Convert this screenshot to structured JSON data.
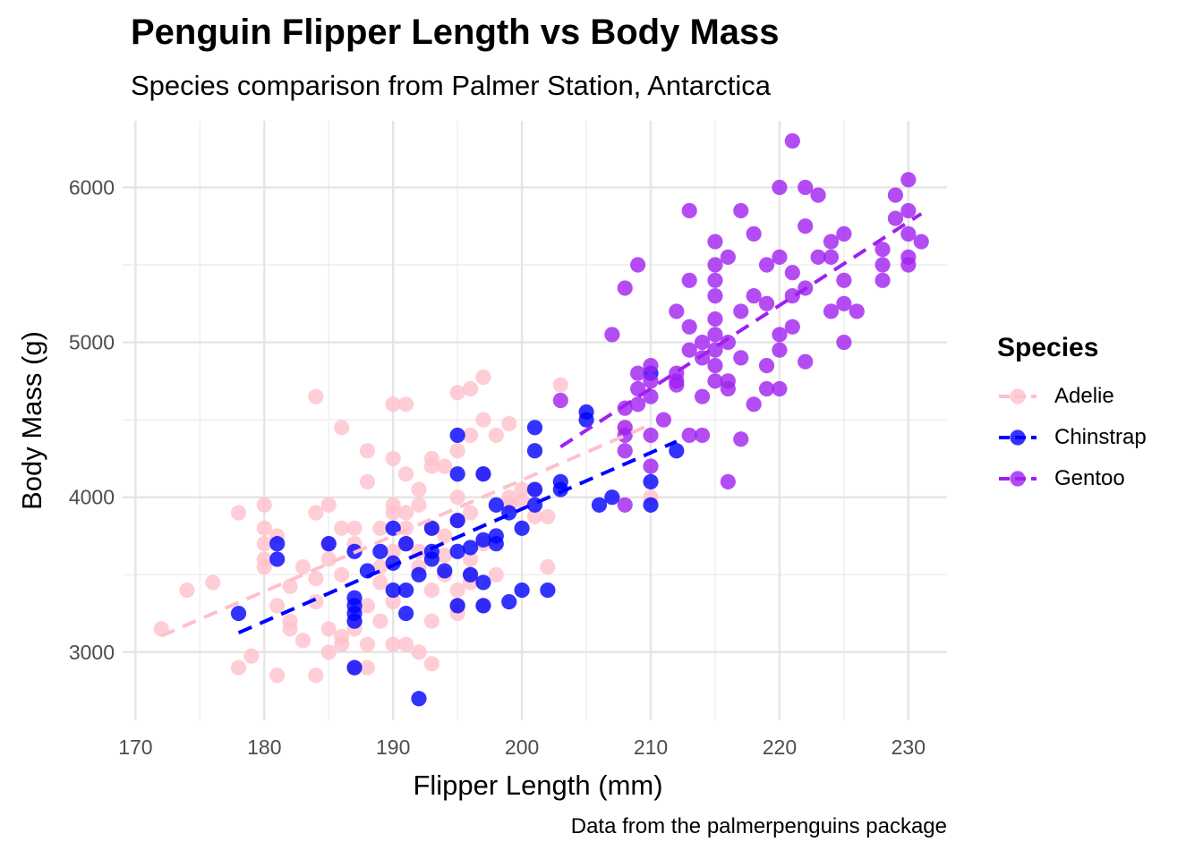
{
  "chart_data": {
    "type": "scatter",
    "title": "Penguin Flipper Length vs Body Mass",
    "subtitle": "Species comparison from Palmer Station, Antarctica",
    "caption": "Data from the palmerpenguins package",
    "xlabel": "Flipper Length (mm)",
    "ylabel": "Body Mass (g)",
    "xlim": [
      169,
      233
    ],
    "ylim": [
      2560,
      6430
    ],
    "x_ticks": [
      170,
      180,
      190,
      200,
      210,
      220,
      230
    ],
    "y_ticks": [
      3000,
      4000,
      5000,
      6000
    ],
    "grid": true,
    "legend": {
      "title": "Species",
      "position": "right"
    },
    "series": [
      {
        "name": "Adelie",
        "color": "#FFC0CB",
        "trend": {
          "x": [
            172,
            210
          ],
          "y": [
            3105,
            4470
          ]
        },
        "points": [
          [
            172,
            3150
          ],
          [
            174,
            3400
          ],
          [
            176,
            3450
          ],
          [
            178,
            3900
          ],
          [
            178,
            2900
          ],
          [
            179,
            2975
          ],
          [
            180,
            3950
          ],
          [
            180,
            3800
          ],
          [
            180,
            3700
          ],
          [
            180,
            3550
          ],
          [
            180,
            3600
          ],
          [
            181,
            2850
          ],
          [
            181,
            3300
          ],
          [
            181,
            3750
          ],
          [
            182,
            3150
          ],
          [
            182,
            3200
          ],
          [
            182,
            3425
          ],
          [
            183,
            3075
          ],
          [
            183,
            3550
          ],
          [
            184,
            4650
          ],
          [
            184,
            3900
          ],
          [
            184,
            3325
          ],
          [
            184,
            3475
          ],
          [
            184,
            2850
          ],
          [
            185,
            3950
          ],
          [
            185,
            3150
          ],
          [
            185,
            3700
          ],
          [
            185,
            3000
          ],
          [
            185,
            3600
          ],
          [
            186,
            4450
          ],
          [
            186,
            3800
          ],
          [
            186,
            3100
          ],
          [
            186,
            3500
          ],
          [
            186,
            3050
          ],
          [
            187,
            3800
          ],
          [
            187,
            3200
          ],
          [
            187,
            3150
          ],
          [
            187,
            2900
          ],
          [
            187,
            3700
          ],
          [
            188,
            4300
          ],
          [
            188,
            4100
          ],
          [
            188,
            3050
          ],
          [
            188,
            2900
          ],
          [
            188,
            3300
          ],
          [
            189,
            3200
          ],
          [
            189,
            3450
          ],
          [
            189,
            3800
          ],
          [
            189,
            3550
          ],
          [
            190,
            4600
          ],
          [
            190,
            3950
          ],
          [
            190,
            3900
          ],
          [
            190,
            4250
          ],
          [
            190,
            3050
          ],
          [
            190,
            3325
          ],
          [
            190,
            3650
          ],
          [
            191,
            4600
          ],
          [
            191,
            3800
          ],
          [
            191,
            3050
          ],
          [
            191,
            3700
          ],
          [
            191,
            3900
          ],
          [
            191,
            4150
          ],
          [
            192,
            4050
          ],
          [
            192,
            3950
          ],
          [
            192,
            3000
          ],
          [
            192,
            3650
          ],
          [
            192,
            3550
          ],
          [
            193,
            4250
          ],
          [
            193,
            4200
          ],
          [
            193,
            3400
          ],
          [
            193,
            3200
          ],
          [
            193,
            2925
          ],
          [
            193,
            3800
          ],
          [
            194,
            4200
          ],
          [
            194,
            3500
          ],
          [
            194,
            3625
          ],
          [
            194,
            3750
          ],
          [
            195,
            4675
          ],
          [
            195,
            4000
          ],
          [
            195,
            3250
          ],
          [
            195,
            3300
          ],
          [
            195,
            3400
          ],
          [
            195,
            3850
          ],
          [
            195,
            4300
          ],
          [
            196,
            4700
          ],
          [
            196,
            4400
          ],
          [
            196,
            3500
          ],
          [
            196,
            3900
          ],
          [
            196,
            3450
          ],
          [
            196,
            3600
          ],
          [
            197,
            4775
          ],
          [
            197,
            4500
          ],
          [
            197,
            4150
          ],
          [
            197,
            3300
          ],
          [
            197,
            3700
          ],
          [
            198,
            4400
          ],
          [
            198,
            3500
          ],
          [
            199,
            4475
          ],
          [
            199,
            3950
          ],
          [
            199,
            4000
          ],
          [
            200,
            4050
          ],
          [
            200,
            3975
          ],
          [
            201,
            3875
          ],
          [
            201,
            4050
          ],
          [
            202,
            3550
          ],
          [
            202,
            3875
          ],
          [
            203,
            4725
          ],
          [
            208,
            4450
          ],
          [
            210,
            4000
          ]
        ]
      },
      {
        "name": "Chinstrap",
        "color": "#0000FF",
        "trend": {
          "x": [
            178,
            212
          ],
          "y": [
            3125,
            4360
          ]
        },
        "points": [
          [
            178,
            3250
          ],
          [
            181,
            3700
          ],
          [
            181,
            3600
          ],
          [
            185,
            3700
          ],
          [
            187,
            3650
          ],
          [
            187,
            3350
          ],
          [
            187,
            3250
          ],
          [
            187,
            2900
          ],
          [
            187,
            3300
          ],
          [
            187,
            3200
          ],
          [
            188,
            3525
          ],
          [
            189,
            3650
          ],
          [
            190,
            3400
          ],
          [
            190,
            3575
          ],
          [
            190,
            3800
          ],
          [
            191,
            3250
          ],
          [
            191,
            3400
          ],
          [
            191,
            3700
          ],
          [
            192,
            2700
          ],
          [
            192,
            3500
          ],
          [
            193,
            3800
          ],
          [
            193,
            3650
          ],
          [
            193,
            3600
          ],
          [
            194,
            3525
          ],
          [
            195,
            4400
          ],
          [
            195,
            4150
          ],
          [
            195,
            3650
          ],
          [
            195,
            3300
          ],
          [
            195,
            3850
          ],
          [
            196,
            3675
          ],
          [
            196,
            3500
          ],
          [
            197,
            4150
          ],
          [
            197,
            3725
          ],
          [
            197,
            3450
          ],
          [
            197,
            3300
          ],
          [
            198,
            3700
          ],
          [
            198,
            3950
          ],
          [
            198,
            3750
          ],
          [
            199,
            3325
          ],
          [
            199,
            3900
          ],
          [
            200,
            3400
          ],
          [
            200,
            3800
          ],
          [
            201,
            4450
          ],
          [
            201,
            4300
          ],
          [
            201,
            4050
          ],
          [
            201,
            3950
          ],
          [
            202,
            3400
          ],
          [
            203,
            4100
          ],
          [
            203,
            4050
          ],
          [
            205,
            4550
          ],
          [
            205,
            4500
          ],
          [
            206,
            3950
          ],
          [
            207,
            4000
          ],
          [
            210,
            3950
          ],
          [
            210,
            4800
          ],
          [
            210,
            4100
          ],
          [
            212,
            4300
          ]
        ]
      },
      {
        "name": "Gentoo",
        "color": "#A020F0",
        "trend": {
          "x": [
            203,
            231
          ],
          "y": [
            4325,
            5830
          ]
        },
        "points": [
          [
            203,
            4625
          ],
          [
            207,
            5050
          ],
          [
            208,
            5350
          ],
          [
            208,
            4450
          ],
          [
            208,
            4300
          ],
          [
            208,
            3950
          ],
          [
            208,
            4575
          ],
          [
            208,
            4400
          ],
          [
            209,
            5500
          ],
          [
            209,
            4800
          ],
          [
            209,
            4700
          ],
          [
            209,
            4600
          ],
          [
            210,
            4750
          ],
          [
            210,
            4850
          ],
          [
            210,
            4200
          ],
          [
            210,
            4650
          ],
          [
            210,
            4400
          ],
          [
            211,
            4500
          ],
          [
            212,
            4800
          ],
          [
            212,
            5200
          ],
          [
            212,
            4750
          ],
          [
            212,
            4725
          ],
          [
            213,
            5850
          ],
          [
            213,
            5400
          ],
          [
            213,
            5100
          ],
          [
            213,
            4400
          ],
          [
            213,
            4950
          ],
          [
            214,
            5000
          ],
          [
            214,
            4650
          ],
          [
            214,
            4400
          ],
          [
            214,
            4900
          ],
          [
            215,
            5650
          ],
          [
            215,
            5500
          ],
          [
            215,
            5400
          ],
          [
            215,
            5300
          ],
          [
            215,
            5150
          ],
          [
            215,
            5050
          ],
          [
            215,
            4850
          ],
          [
            215,
            4750
          ],
          [
            215,
            4950
          ],
          [
            216,
            5550
          ],
          [
            216,
            5000
          ],
          [
            216,
            4750
          ],
          [
            216,
            4100
          ],
          [
            216,
            4700
          ],
          [
            217,
            5850
          ],
          [
            217,
            5200
          ],
          [
            217,
            4900
          ],
          [
            217,
            4375
          ],
          [
            218,
            5700
          ],
          [
            218,
            5300
          ],
          [
            218,
            4600
          ],
          [
            219,
            5500
          ],
          [
            219,
            5250
          ],
          [
            219,
            4850
          ],
          [
            219,
            4700
          ],
          [
            220,
            6000
          ],
          [
            220,
            5550
          ],
          [
            220,
            5050
          ],
          [
            220,
            4950
          ],
          [
            220,
            4700
          ],
          [
            221,
            6300
          ],
          [
            221,
            5450
          ],
          [
            221,
            5100
          ],
          [
            221,
            5300
          ],
          [
            222,
            6000
          ],
          [
            222,
            5750
          ],
          [
            222,
            4875
          ],
          [
            222,
            5350
          ],
          [
            223,
            5950
          ],
          [
            223,
            5550
          ],
          [
            224,
            5550
          ],
          [
            224,
            5650
          ],
          [
            224,
            5200
          ],
          [
            225,
            5700
          ],
          [
            225,
            5400
          ],
          [
            225,
            5250
          ],
          [
            225,
            5000
          ],
          [
            226,
            5200
          ],
          [
            228,
            5600
          ],
          [
            228,
            5500
          ],
          [
            228,
            5400
          ],
          [
            229,
            5950
          ],
          [
            229,
            5800
          ],
          [
            230,
            6050
          ],
          [
            230,
            5850
          ],
          [
            230,
            5700
          ],
          [
            230,
            5500
          ],
          [
            230,
            5550
          ],
          [
            231,
            5650
          ]
        ]
      }
    ]
  }
}
